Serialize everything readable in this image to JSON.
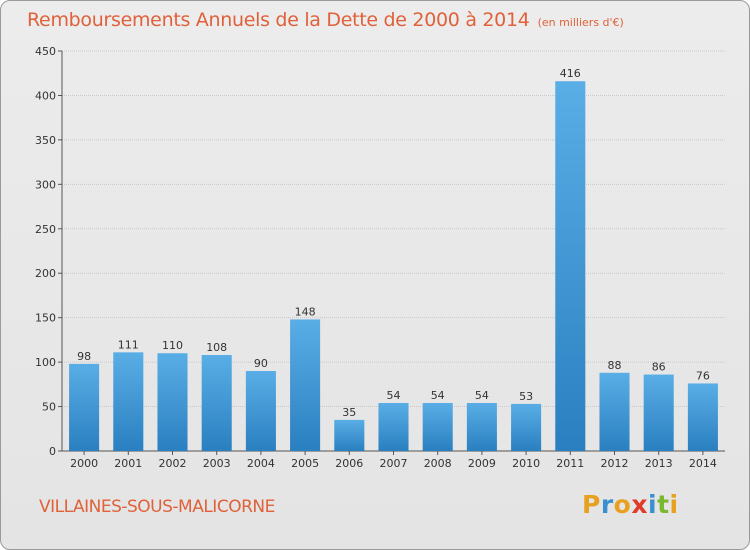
{
  "chart_data": {
    "type": "bar",
    "title": "Remboursements Annuels de la Dette de 2000 à 2014",
    "unit_note": "(en milliers d'€)",
    "categories": [
      "2000",
      "2001",
      "2002",
      "2003",
      "2004",
      "2005",
      "2006",
      "2007",
      "2008",
      "2009",
      "2010",
      "2011",
      "2012",
      "2013",
      "2014"
    ],
    "values": [
      98,
      111,
      110,
      108,
      90,
      148,
      35,
      54,
      54,
      54,
      53,
      416,
      88,
      86,
      76
    ],
    "ylim": [
      0,
      450
    ],
    "yticks": [
      0,
      50,
      100,
      150,
      200,
      250,
      300,
      350,
      400,
      450
    ],
    "grid": true,
    "bar_color_top": "#5aaee6",
    "bar_color_bottom": "#2a7fc0"
  },
  "footer": {
    "town": "VILLAINES-SOUS-MALICORNE",
    "logo_letters": [
      "P",
      "r",
      "o",
      "x",
      "i",
      "t",
      "i"
    ],
    "logo_colors": [
      "#e8a020",
      "#3a8fd0",
      "#e8a020",
      "#e03a2a",
      "#3a8fd0",
      "#7ab830",
      "#e8a020"
    ]
  }
}
